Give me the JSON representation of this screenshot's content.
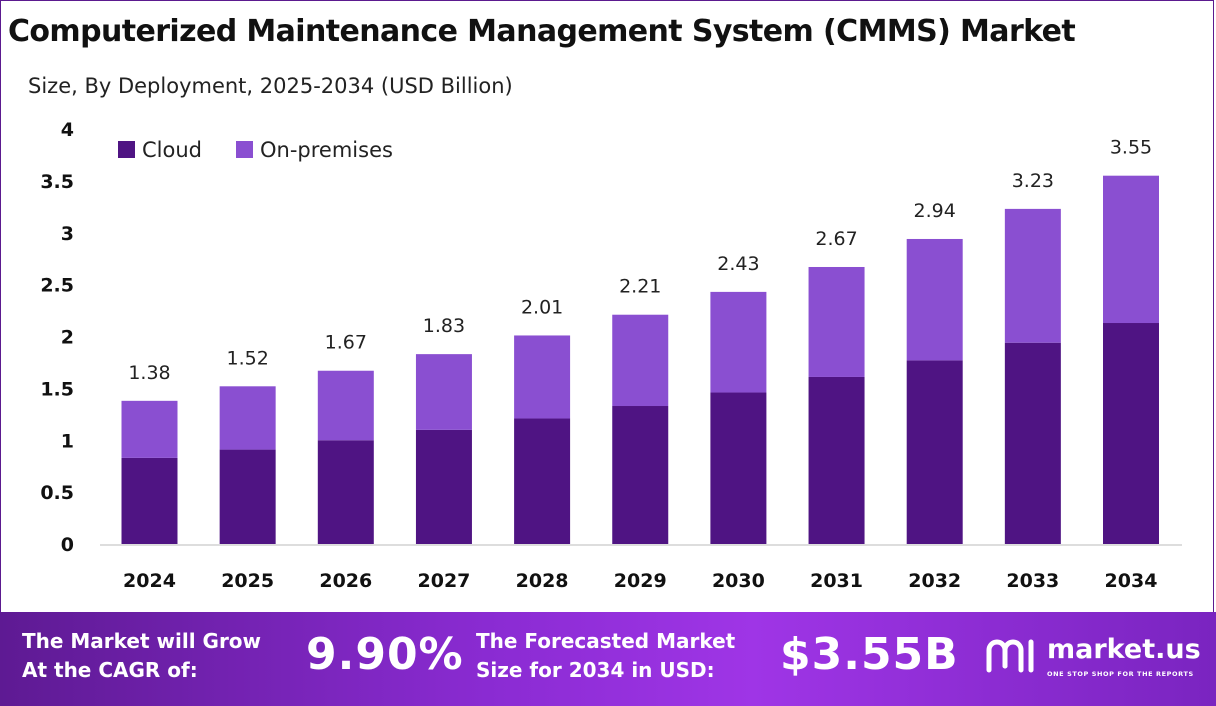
{
  "title": "Computerized Maintenance Management System (CMMS) Market",
  "subtitle": "Size, By Deployment, 2025-2034 (USD Billion)",
  "colors": {
    "cloud": "#4f1483",
    "on_premises": "#8a4fd1",
    "axis": "#bbbbbb"
  },
  "chart_data": {
    "type": "bar",
    "stacked": true,
    "categories": [
      "2024",
      "2025",
      "2026",
      "2027",
      "2028",
      "2029",
      "2030",
      "2031",
      "2032",
      "2033",
      "2034"
    ],
    "series": [
      {
        "name": "Cloud",
        "values": [
          0.83,
          0.91,
          1.0,
          1.1,
          1.21,
          1.33,
          1.46,
          1.61,
          1.77,
          1.94,
          2.13
        ]
      },
      {
        "name": "On-premises",
        "values": [
          0.55,
          0.61,
          0.67,
          0.73,
          0.8,
          0.88,
          0.97,
          1.06,
          1.17,
          1.29,
          1.42
        ]
      }
    ],
    "totals": [
      "1.38",
      "1.52",
      "1.67",
      "1.83",
      "2.01",
      "2.21",
      "2.43",
      "2.67",
      "2.94",
      "3.23",
      "3.55"
    ],
    "ylim": [
      0,
      4
    ],
    "yticks": [
      "0",
      "0.5",
      "1",
      "1.5",
      "2",
      "2.5",
      "3",
      "3.5",
      "4"
    ],
    "legend_position": "top-left",
    "grid": false
  },
  "footer": {
    "cagr_label": "The Market will Grow\nAt the CAGR of:",
    "cagr_value": "9.90%",
    "forecast_label": "The Forecasted Market\nSize for 2034 in USD:",
    "forecast_value": "$3.55B",
    "brand_name": "market.us",
    "brand_tagline": "ONE STOP SHOP FOR THE REPORTS"
  }
}
